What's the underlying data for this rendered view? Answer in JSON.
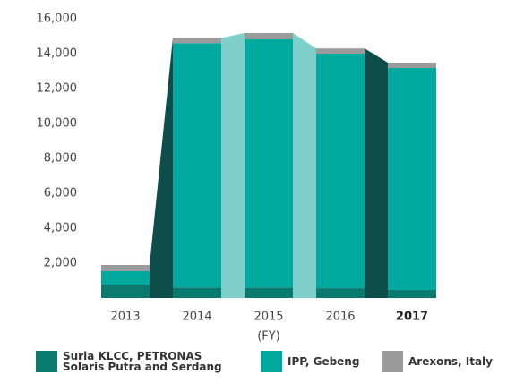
{
  "chart_data": {
    "type": "stacked_bar",
    "categories": [
      "2013",
      "2014",
      "2015",
      "2016",
      "2017"
    ],
    "xlabel": "(FY)",
    "series": [
      {
        "name": "Suria KLCC, PETRONAS Solaris Putra and Serdang",
        "color": "#0b7a6e",
        "values": [
          770,
          600,
          600,
          560,
          460
        ]
      },
      {
        "name": "IPP, Gebeng",
        "color": "#00a99d",
        "values": [
          770,
          14000,
          14220,
          13440,
          12720
        ]
      },
      {
        "name": "Arexons, Italy",
        "color": "#9b9b9b",
        "values": [
          360,
          300,
          360,
          300,
          310
        ]
      }
    ],
    "connector_colors": [
      "#0d4d4a",
      "#7fd0ca",
      "#7fd0ca",
      "#0d4d4a"
    ],
    "ylim": [
      0,
      16000
    ],
    "yticks": [
      {
        "value": 2000,
        "label": "2,000"
      },
      {
        "value": 4000,
        "label": "4,000"
      },
      {
        "value": 6000,
        "label": "6,000"
      },
      {
        "value": 8000,
        "label": "8,000"
      },
      {
        "value": 10000,
        "label": "10,000"
      },
      {
        "value": 12000,
        "label": "12,000"
      },
      {
        "value": 14000,
        "label": "14,000"
      },
      {
        "value": 16000,
        "label": "16,000"
      }
    ]
  }
}
